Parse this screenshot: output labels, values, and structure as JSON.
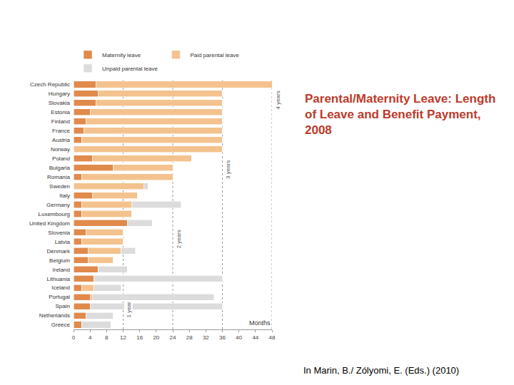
{
  "chart_data": {
    "type": "bar",
    "orientation": "horizontal",
    "stacked": true,
    "title": "Parental/Maternity Leave: Length of Leave and Benefit Payment, 2008",
    "x_label": "Months",
    "annotations": [
      "In Marin, B./ Zólyomi, E. (Eds.) (2010)"
    ],
    "reference_lines": [
      {
        "value": 12,
        "label": "1 year"
      },
      {
        "value": 24,
        "label": "2 years"
      },
      {
        "value": 36,
        "label": "3 years"
      },
      {
        "value": 48,
        "label": "4 years"
      }
    ],
    "categories": [
      "Czech Republic",
      "Hungary",
      "Slovakia",
      "Estonia",
      "Finland",
      "France",
      "Austria",
      "Norway",
      "Poland",
      "Bulgaria",
      "Romania",
      "Sweden",
      "Italy",
      "Germany",
      "Luxembourg",
      "United Kingdom",
      "Slovenia",
      "Latvia",
      "Denmark",
      "Belgium",
      "Ireland",
      "Lithuania",
      "Iceland",
      "Portugal",
      "Spain",
      "Netherlands",
      "Greece"
    ],
    "series": [
      {
        "name": "Maternity leave",
        "color": "#e08a4b",
        "values": [
          5.5,
          6,
          5.5,
          4,
          3,
          2.5,
          2,
          0,
          4.5,
          9.5,
          2,
          0,
          4.5,
          2,
          2,
          13,
          3,
          2,
          3.5,
          3.5,
          6,
          5,
          2,
          4,
          4,
          3,
          2
        ]
      },
      {
        "name": "Paid parental leave",
        "color": "#f4c28e",
        "values": [
          42.5,
          30,
          30.5,
          32,
          33,
          33.5,
          34,
          36,
          24,
          14.5,
          22,
          17,
          11,
          12,
          12,
          0,
          9,
          10,
          8,
          6,
          0,
          0,
          3,
          0.5,
          0,
          0,
          0
        ]
      },
      {
        "name": "Unpaid parental leave",
        "color": "#dcdcdc",
        "values": [
          0,
          0,
          0,
          0,
          0,
          0,
          0,
          0,
          0,
          0,
          0,
          1,
          0,
          12,
          0,
          6,
          0,
          0,
          3.5,
          0,
          7,
          31,
          6.5,
          29.5,
          32,
          6.5,
          7
        ]
      }
    ],
    "xlim": [
      0,
      48
    ],
    "xticks": [
      0,
      4,
      8,
      12,
      16,
      20,
      24,
      28,
      32,
      36,
      40,
      44,
      48
    ],
    "grid": false,
    "legend": "top"
  }
}
